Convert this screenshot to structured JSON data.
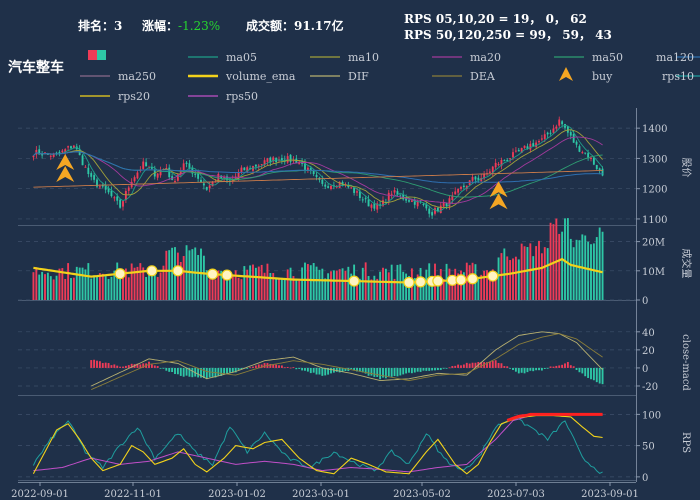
{
  "header": {
    "rank_label": "排名：",
    "rank_value": "3",
    "change_label": "涨幅：",
    "change_value": "-1.23%",
    "amount_label": "成交额：",
    "amount_value": "91.17亿",
    "rps_line1": "RPS 05,10,20 = 19， 0， 62",
    "rps_line2": "RPS 50,120,250 = 99， 59， 43"
  },
  "sector_name": "汽车整车",
  "colors": {
    "background": "#1f3049",
    "up": "#ef3b57",
    "down": "#2ec7a6",
    "ma05": "#1f9e89",
    "ma10": "#a0a03a",
    "ma20": "#a23a9c",
    "ma50": "#2e9e72",
    "ma120": "#2f6fb0",
    "ma250": "#8a6a8a",
    "volume_ema": "#f2d21b",
    "dif": "#b8b070",
    "dea": "#8a7d3a",
    "buy": "#f5a623",
    "rps10": "#1e9e9e",
    "rps20": "#f2d21b",
    "rps50": "#c14fc8",
    "rps_high": "#ff2020"
  },
  "legend": {
    "items": [
      {
        "key": "candle",
        "label": ""
      },
      {
        "key": "ma05",
        "label": "ma05"
      },
      {
        "key": "ma10",
        "label": "ma10"
      },
      {
        "key": "ma20",
        "label": "ma20"
      },
      {
        "key": "ma50",
        "label": "ma50"
      },
      {
        "key": "ma120",
        "label": "ma120"
      },
      {
        "key": "ma250",
        "label": "ma250"
      },
      {
        "key": "volume_ema",
        "label": "volume_ema"
      },
      {
        "key": "dif",
        "label": "DIF"
      },
      {
        "key": "dea",
        "label": "DEA"
      },
      {
        "key": "buy",
        "label": "buy"
      },
      {
        "key": "rps10",
        "label": "rps10"
      },
      {
        "key": "rps20",
        "label": "rps20"
      },
      {
        "key": "rps50",
        "label": "rps50"
      }
    ]
  },
  "chart_data": {
    "type": "candlestick",
    "x_ticks": [
      "2022-09-01",
      "2022-11-01",
      "2023-01-02",
      "2023-03-01",
      "2023-05-02",
      "2023-07-03",
      "2023-09-01"
    ],
    "panels": [
      {
        "name": "price",
        "ylabel": "股价",
        "yticks": [
          1100,
          1200,
          1300,
          1400
        ],
        "ylim": [
          1080,
          1460
        ]
      },
      {
        "name": "volume",
        "ylabel": "成交量",
        "yticks": [
          "0",
          "10M",
          "20M"
        ],
        "ylim": [
          0,
          25
        ]
      },
      {
        "name": "macd",
        "ylabel": "close-macd",
        "yticks": [
          -20,
          0,
          20,
          40
        ],
        "ylim": [
          -30,
          42
        ]
      },
      {
        "name": "rps",
        "ylabel": "RPS",
        "yticks": [
          0,
          50,
          100
        ],
        "ylim": [
          -5,
          115
        ]
      }
    ],
    "price_anchors": [
      [
        0,
        1320
      ],
      [
        8,
        1310
      ],
      [
        14,
        1345
      ],
      [
        20,
        1230
      ],
      [
        26,
        1185
      ],
      [
        30,
        1140
      ],
      [
        34,
        1230
      ],
      [
        38,
        1280
      ],
      [
        42,
        1250
      ],
      [
        46,
        1270
      ],
      [
        48,
        1220
      ],
      [
        52,
        1280
      ],
      [
        56,
        1250
      ],
      [
        60,
        1200
      ],
      [
        64,
        1240
      ],
      [
        68,
        1220
      ],
      [
        72,
        1260
      ],
      [
        78,
        1280
      ],
      [
        82,
        1295
      ],
      [
        86,
        1300
      ],
      [
        92,
        1290
      ],
      [
        96,
        1250
      ],
      [
        100,
        1210
      ],
      [
        106,
        1220
      ],
      [
        110,
        1200
      ],
      [
        116,
        1150
      ],
      [
        120,
        1140
      ],
      [
        124,
        1190
      ],
      [
        128,
        1170
      ],
      [
        134,
        1150
      ],
      [
        138,
        1120
      ],
      [
        144,
        1160
      ],
      [
        148,
        1200
      ],
      [
        152,
        1230
      ],
      [
        156,
        1240
      ],
      [
        160,
        1280
      ],
      [
        164,
        1300
      ],
      [
        168,
        1320
      ],
      [
        172,
        1345
      ],
      [
        176,
        1360
      ],
      [
        180,
        1400
      ],
      [
        182,
        1425
      ],
      [
        184,
        1400
      ],
      [
        188,
        1340
      ],
      [
        192,
        1310
      ],
      [
        197,
        1245
      ]
    ],
    "buy_signals": [
      {
        "date": "2022-09-14",
        "price": 1260
      },
      {
        "date": "2023-06-15",
        "price": 1170
      }
    ],
    "volume_highlights": [
      {
        "date": "2022-10-10"
      },
      {
        "date": "2022-10-25"
      },
      {
        "date": "2022-11-18"
      },
      {
        "date": "2022-12-14"
      },
      {
        "date": "2022-12-21"
      },
      {
        "date": "2023-05-04"
      },
      {
        "date": "2023-06-19"
      },
      {
        "date": "2023-06-27"
      },
      {
        "date": "2023-07-05"
      },
      {
        "date": "2023-07-10"
      },
      {
        "date": "2023-07-17"
      },
      {
        "date": "2023-07-21"
      },
      {
        "date": "2023-07-27"
      },
      {
        "date": "2023-08-02"
      }
    ]
  }
}
